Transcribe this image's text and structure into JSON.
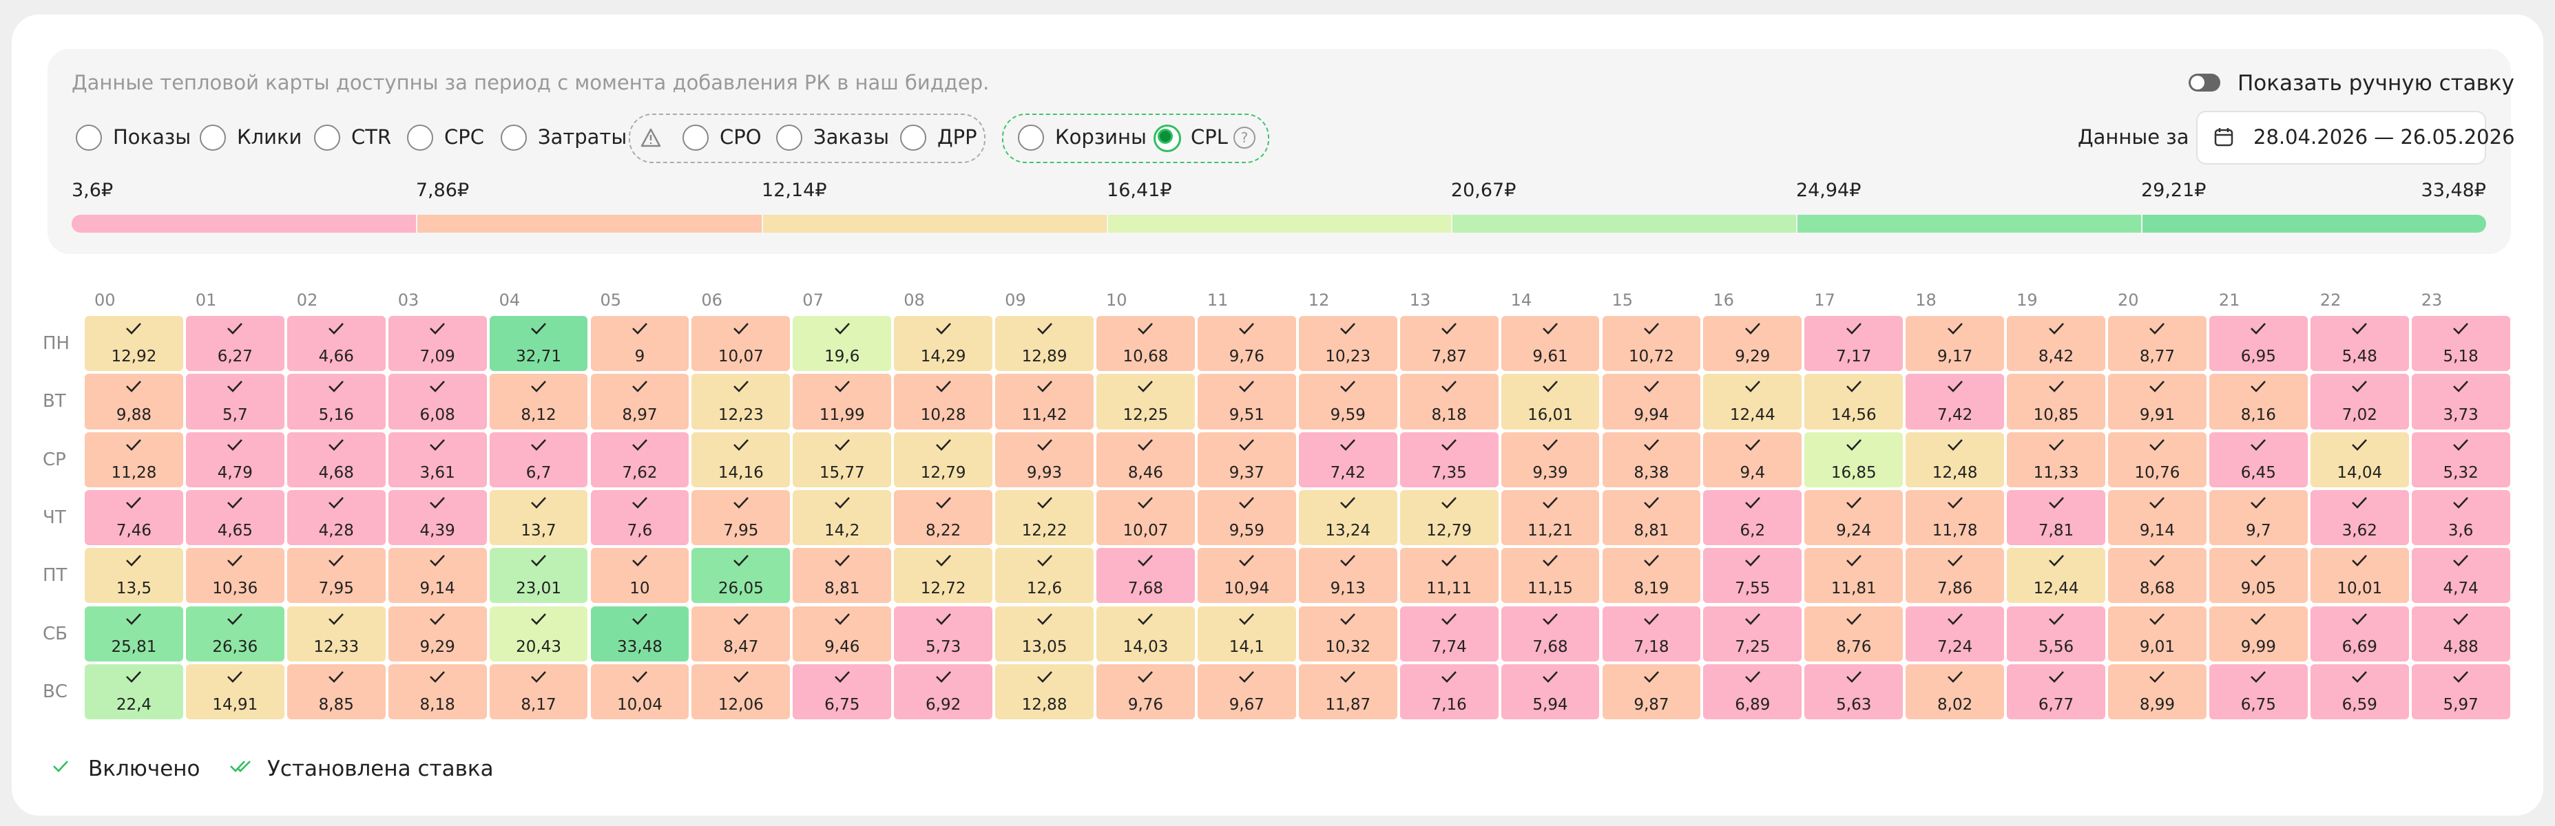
{
  "header": {
    "note": "Данные тепловой карты доступны за период с момента добавления РК в наш биддер.",
    "toggle_label": "Показать ручную ставку",
    "period_label": "Данные за",
    "period": "28.04.2026 — 26.05.2026"
  },
  "filters": [
    {
      "label": "Показы"
    },
    {
      "label": "Клики"
    },
    {
      "label": "CTR"
    },
    {
      "label": "CPC"
    },
    {
      "label": "Затраты"
    },
    {
      "label": "CPO"
    },
    {
      "label": "Заказы"
    },
    {
      "label": "ДРР"
    },
    {
      "label": "Корзины"
    },
    {
      "label": "CPL",
      "selected": true
    }
  ],
  "scale": [
    "3,6₽",
    "7,86₽",
    "12,14₽",
    "16,41₽",
    "20,67₽",
    "24,94₽",
    "29,21₽",
    "33,48₽"
  ],
  "grid": {
    "columns": [
      "00",
      "01",
      "02",
      "03",
      "04",
      "05",
      "06",
      "07",
      "08",
      "09",
      "10",
      "11",
      "12",
      "13",
      "14",
      "15",
      "16",
      "17",
      "18",
      "19",
      "20",
      "21",
      "22",
      "23"
    ],
    "rows": [
      {
        "label": "ПН",
        "values": [
          "12,92",
          "6,27",
          "4,66",
          "7,09",
          "32,71",
          "9",
          "10,07",
          "19,6",
          "14,29",
          "12,89",
          "10,68",
          "9,76",
          "10,23",
          "7,87",
          "9,61",
          "10,72",
          "9,29",
          "7,17",
          "9,17",
          "8,42",
          "8,77",
          "6,95",
          "5,48",
          "5,18"
        ]
      },
      {
        "label": "ВТ",
        "values": [
          "9,88",
          "5,7",
          "5,16",
          "6,08",
          "8,12",
          "8,97",
          "12,23",
          "11,99",
          "10,28",
          "11,42",
          "12,25",
          "9,51",
          "9,59",
          "8,18",
          "16,01",
          "9,94",
          "12,44",
          "14,56",
          "7,42",
          "10,85",
          "9,91",
          "8,16",
          "7,02",
          "3,73"
        ]
      },
      {
        "label": "СР",
        "values": [
          "11,28",
          "4,79",
          "4,68",
          "3,61",
          "6,7",
          "7,62",
          "14,16",
          "15,77",
          "12,79",
          "9,93",
          "8,46",
          "9,37",
          "7,42",
          "7,35",
          "9,39",
          "8,38",
          "9,4",
          "16,85",
          "12,48",
          "11,33",
          "10,76",
          "6,45",
          "14,04",
          "5,32"
        ]
      },
      {
        "label": "ЧТ",
        "values": [
          "7,46",
          "4,65",
          "4,28",
          "4,39",
          "13,7",
          "7,6",
          "7,95",
          "14,2",
          "8,22",
          "12,22",
          "10,07",
          "9,59",
          "13,24",
          "12,79",
          "11,21",
          "8,81",
          "6,2",
          "9,24",
          "11,78",
          "7,81",
          "9,14",
          "9,7",
          "3,62",
          "3,6"
        ]
      },
      {
        "label": "ПТ",
        "values": [
          "13,5",
          "10,36",
          "7,95",
          "9,14",
          "23,01",
          "10",
          "26,05",
          "8,81",
          "12,72",
          "12,6",
          "7,68",
          "10,94",
          "9,13",
          "11,11",
          "11,15",
          "8,19",
          "7,55",
          "11,81",
          "7,86",
          "12,44",
          "8,68",
          "9,05",
          "10,01",
          "4,74"
        ]
      },
      {
        "label": "СБ",
        "values": [
          "25,81",
          "26,36",
          "12,33",
          "9,29",
          "20,43",
          "33,48",
          "8,47",
          "9,46",
          "5,73",
          "13,05",
          "14,03",
          "14,1",
          "10,32",
          "7,74",
          "7,68",
          "7,18",
          "7,25",
          "8,76",
          "7,24",
          "5,56",
          "9,01",
          "9,99",
          "6,69",
          "4,88"
        ]
      },
      {
        "label": "ВС",
        "values": [
          "22,4",
          "14,91",
          "8,85",
          "8,18",
          "8,17",
          "10,04",
          "12,06",
          "6,75",
          "6,92",
          "12,88",
          "9,76",
          "9,67",
          "11,87",
          "7,16",
          "5,94",
          "9,87",
          "6,89",
          "5,63",
          "8,02",
          "6,77",
          "8,99",
          "6,75",
          "6,59",
          "5,97"
        ]
      }
    ]
  },
  "legend": [
    "Включено",
    "Установлена ставка"
  ]
}
